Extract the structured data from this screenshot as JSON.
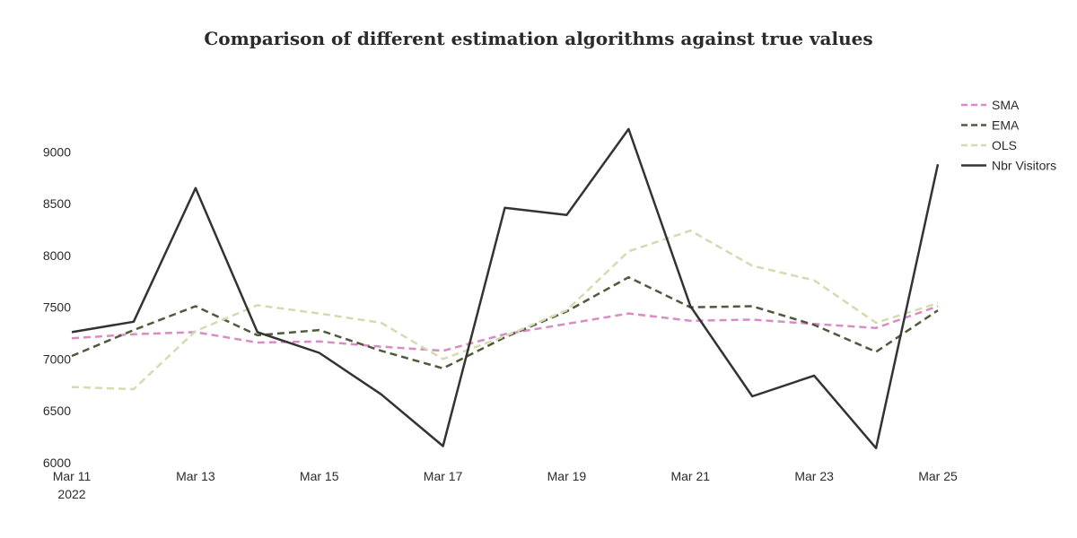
{
  "chart_data": {
    "type": "line",
    "title": "Comparison of different estimation algorithms against true values",
    "xlabel": "",
    "ylabel": "",
    "x": [
      "2022-03-11",
      "2022-03-12",
      "2022-03-13",
      "2022-03-14",
      "2022-03-15",
      "2022-03-16",
      "2022-03-17",
      "2022-03-18",
      "2022-03-19",
      "2022-03-20",
      "2022-03-21",
      "2022-03-22",
      "2022-03-23",
      "2022-03-24",
      "2022-03-25"
    ],
    "xticks": [
      {
        "date": "2022-03-11",
        "label": "Mar 11",
        "sublabel": "2022"
      },
      {
        "date": "2022-03-13",
        "label": "Mar 13"
      },
      {
        "date": "2022-03-15",
        "label": "Mar 15"
      },
      {
        "date": "2022-03-17",
        "label": "Mar 17"
      },
      {
        "date": "2022-03-19",
        "label": "Mar 19"
      },
      {
        "date": "2022-03-21",
        "label": "Mar 21"
      },
      {
        "date": "2022-03-23",
        "label": "Mar 23"
      },
      {
        "date": "2022-03-25",
        "label": "Mar 25"
      }
    ],
    "ylim": [
      6000,
      9600
    ],
    "yticks": [
      6000,
      6500,
      7000,
      7500,
      8000,
      8500,
      9000
    ],
    "grid": false,
    "legend_position": "top-right",
    "series": [
      {
        "name": "SMA",
        "color": "#d98cc3",
        "dash": "dashed",
        "values": [
          7200,
          7240,
          7260,
          7160,
          7170,
          7120,
          7080,
          7240,
          7340,
          7440,
          7370,
          7380,
          7340,
          7300,
          7510
        ]
      },
      {
        "name": "EMA",
        "color": "#4e5a3a",
        "dash": "dashed",
        "values": [
          7030,
          7280,
          7510,
          7230,
          7280,
          7080,
          6910,
          7210,
          7460,
          7790,
          7500,
          7510,
          7330,
          7070,
          7470
        ]
      },
      {
        "name": "OLS",
        "color": "#d2dcb0",
        "dash": "dashed",
        "values": [
          6730,
          6710,
          7270,
          7520,
          7440,
          7350,
          7000,
          7220,
          7470,
          8040,
          8240,
          7900,
          7760,
          7350,
          7540
        ]
      },
      {
        "name": "Nbr Visitors",
        "color": "#333333",
        "dash": "solid",
        "values": [
          7260,
          7360,
          8650,
          7260,
          7060,
          6660,
          6160,
          8460,
          8390,
          9220,
          7510,
          6640,
          6840,
          6140,
          8880
        ]
      }
    ]
  }
}
